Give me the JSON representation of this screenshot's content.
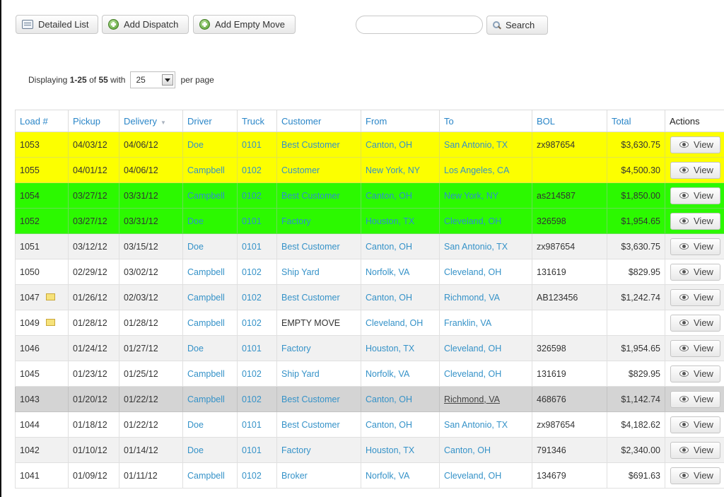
{
  "toolbar": {
    "detailed_list_label": "Detailed List",
    "add_dispatch_label": "Add Dispatch",
    "add_empty_move_label": "Add Empty Move",
    "search_label": "Search",
    "search_value": "",
    "search_placeholder": ""
  },
  "pager": {
    "prefix": "Displaying",
    "range": "1-25",
    "of_text": "of",
    "total": "55",
    "with_text": "with",
    "per_page_value": "25",
    "per_page_suffix": "per page"
  },
  "table": {
    "headers": {
      "load": "Load #",
      "pickup": "Pickup",
      "delivery": "Delivery",
      "driver": "Driver",
      "truck": "Truck",
      "customer": "Customer",
      "from": "From",
      "to": "To",
      "bol": "BOL",
      "total": "Total",
      "actions": "Actions"
    },
    "delivery_sort_indicator": "▼",
    "view_label": "View",
    "rows": [
      {
        "load": "1053",
        "pickup": "04/03/12",
        "delivery": "04/06/12",
        "driver": "Doe",
        "truck": "0101",
        "customer": "Best Customer",
        "from": "Canton, OH",
        "to": "San Antonio, TX",
        "bol": "zx987654",
        "total": "$3,630.75",
        "row_color": "#fcff00",
        "note": false
      },
      {
        "load": "1055",
        "pickup": "04/01/12",
        "delivery": "04/06/12",
        "driver": "Campbell",
        "truck": "0102",
        "customer": "Customer",
        "from": "New York, NY",
        "to": "Los Angeles, CA",
        "bol": "",
        "total": "$4,500.30",
        "row_color": "#fcff00",
        "note": false
      },
      {
        "load": "1054",
        "pickup": "03/27/12",
        "delivery": "03/31/12",
        "driver": "Campbell",
        "truck": "0102",
        "customer": "Best Customer",
        "from": "Canton, OH",
        "to": "New York, NY",
        "bol": "as214587",
        "total": "$1,850.00",
        "row_color": "#2cf900",
        "note": false
      },
      {
        "load": "1052",
        "pickup": "03/27/12",
        "delivery": "03/31/12",
        "driver": "Doe",
        "truck": "0101",
        "customer": "Factory",
        "from": "Houston, TX",
        "to": "Cleveland, OH",
        "bol": "326598",
        "total": "$1,954.65",
        "row_color": "#2cf900",
        "note": false
      },
      {
        "load": "1051",
        "pickup": "03/12/12",
        "delivery": "03/15/12",
        "driver": "Doe",
        "truck": "0101",
        "customer": "Best Customer",
        "from": "Canton, OH",
        "to": "San Antonio, TX",
        "bol": "zx987654",
        "total": "$3,630.75",
        "row_color": "#f1f1f1",
        "note": false
      },
      {
        "load": "1050",
        "pickup": "02/29/12",
        "delivery": "03/02/12",
        "driver": "Campbell",
        "truck": "0102",
        "customer": "Ship Yard",
        "from": "Norfolk, VA",
        "to": "Cleveland, OH",
        "bol": "131619",
        "total": "$829.95",
        "row_color": "#ffffff",
        "note": false
      },
      {
        "load": "1047",
        "pickup": "01/26/12",
        "delivery": "02/03/12",
        "driver": "Campbell",
        "truck": "0102",
        "customer": "Best Customer",
        "from": "Canton, OH",
        "to": "Richmond, VA",
        "bol": "AB123456",
        "total": "$1,242.74",
        "row_color": "#f1f1f1",
        "note": true
      },
      {
        "load": "1049",
        "pickup": "01/28/12",
        "delivery": "01/28/12",
        "driver": "Campbell",
        "truck": "0102",
        "customer": "EMPTY MOVE",
        "from": "Cleveland, OH",
        "to": "Franklin, VA",
        "bol": "",
        "total": "",
        "row_color": "#ffffff",
        "note": true
      },
      {
        "load": "1046",
        "pickup": "01/24/12",
        "delivery": "01/27/12",
        "driver": "Doe",
        "truck": "0101",
        "customer": "Factory",
        "from": "Houston, TX",
        "to": "Cleveland, OH",
        "bol": "326598",
        "total": "$1,954.65",
        "row_color": "#f1f1f1",
        "note": false
      },
      {
        "load": "1045",
        "pickup": "01/23/12",
        "delivery": "01/25/12",
        "driver": "Campbell",
        "truck": "0102",
        "customer": "Ship Yard",
        "from": "Norfolk, VA",
        "to": "Cleveland, OH",
        "bol": "131619",
        "total": "$829.95",
        "row_color": "#ffffff",
        "note": false
      },
      {
        "load": "1043",
        "pickup": "01/20/12",
        "delivery": "01/22/12",
        "driver": "Campbell",
        "truck": "0102",
        "customer": "Best Customer",
        "from": "Canton, OH",
        "to": "Richmond, VA",
        "bol": "468676",
        "total": "$1,142.74",
        "row_color": "#d4d4d4",
        "note": false
      },
      {
        "load": "1044",
        "pickup": "01/18/12",
        "delivery": "01/22/12",
        "driver": "Doe",
        "truck": "0101",
        "customer": "Best Customer",
        "from": "Canton, OH",
        "to": "San Antonio, TX",
        "bol": "zx987654",
        "total": "$4,182.62",
        "row_color": "#ffffff",
        "note": false
      },
      {
        "load": "1042",
        "pickup": "01/10/12",
        "delivery": "01/14/12",
        "driver": "Doe",
        "truck": "0101",
        "customer": "Factory",
        "from": "Houston, TX",
        "to": "Canton, OH",
        "bol": "791346",
        "total": "$2,340.00",
        "row_color": "#f1f1f1",
        "note": false
      },
      {
        "load": "1041",
        "pickup": "01/09/12",
        "delivery": "01/11/12",
        "driver": "Campbell",
        "truck": "0102",
        "customer": "Broker",
        "from": "Norfolk, VA",
        "to": "Cleveland, OH",
        "bol": "134679",
        "total": "$691.63",
        "row_color": "#ffffff",
        "note": false
      }
    ]
  }
}
